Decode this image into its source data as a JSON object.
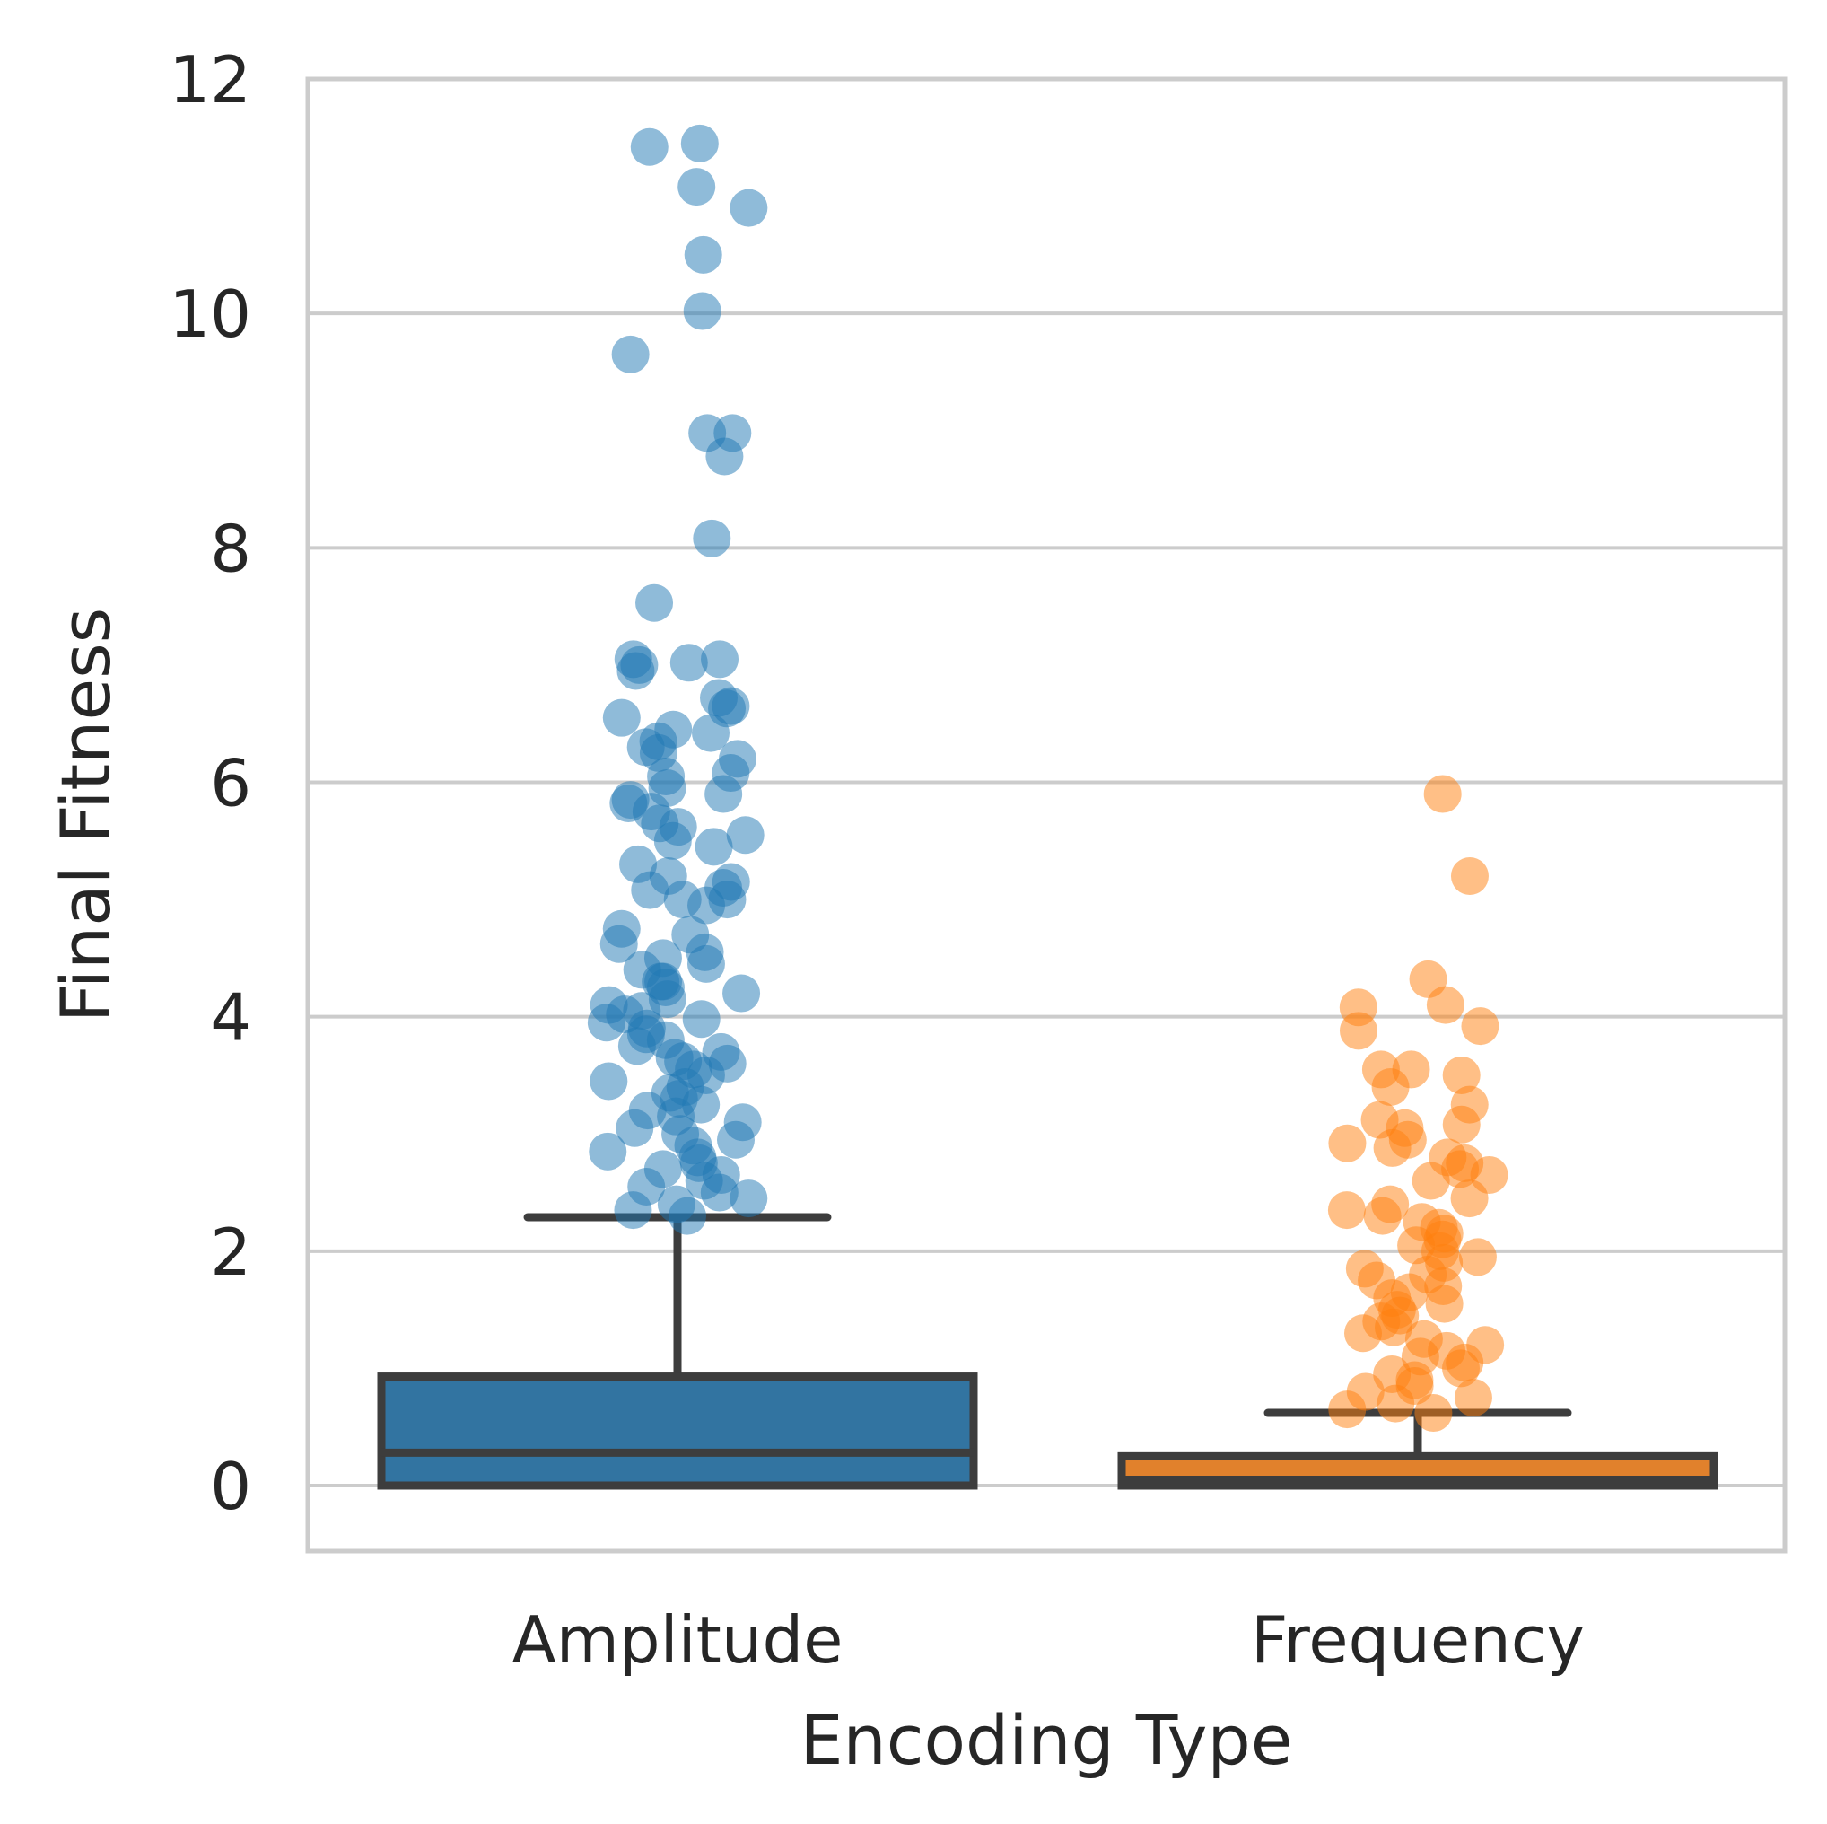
{
  "chart_data": {
    "type": "box",
    "title": "",
    "xlabel": "Encoding Type",
    "ylabel": "Final Fitness",
    "ylim": [
      -0.57,
      12
    ],
    "yticks": [
      0,
      2,
      4,
      6,
      8,
      10,
      12
    ],
    "grid": "horizontal",
    "colors": {
      "Amplitude": "#1f77b4",
      "Frequency": "#ff7f0e",
      "box_line": "#3d3d3d",
      "grid": "#cccccc",
      "box_fill_Amplitude": "#3274a1",
      "box_fill_Frequency": "#e1812c"
    },
    "categories": [
      "Amplitude",
      "Frequency"
    ],
    "boxes": [
      {
        "category": "Amplitude",
        "whislo": 0.0,
        "q1": 0.0,
        "median": 0.28,
        "q3": 0.93,
        "whishi": 2.29
      },
      {
        "category": "Frequency",
        "whislo": 0.0,
        "q1": 0.0,
        "median": 0.05,
        "q3": 0.25,
        "whishi": 0.62
      }
    ],
    "outliers": {
      "Amplitude": [
        11.45,
        11.42,
        11.08,
        10.9,
        10.5,
        10.02,
        9.65,
        8.98,
        8.98,
        8.78,
        8.08,
        7.53,
        7.05,
        7.05,
        7.02,
        7.0,
        6.95,
        6.72,
        6.65,
        6.63,
        6.55,
        6.45,
        6.42,
        6.35,
        6.3,
        6.25,
        6.2,
        6.08,
        6.05,
        5.95,
        5.9,
        5.85,
        5.82,
        5.75,
        5.65,
        5.62,
        5.55,
        5.5,
        5.45,
        5.3,
        5.2,
        5.15,
        5.1,
        5.08,
        5.0,
        5.0,
        4.95,
        4.75,
        4.7,
        4.62,
        4.55,
        4.5,
        4.45,
        4.4,
        4.3,
        4.3,
        4.25,
        4.2,
        4.15,
        4.1,
        4.05,
        4.02,
        3.98,
        3.95,
        3.9,
        3.85,
        3.8,
        3.75,
        3.7,
        3.65,
        3.62,
        3.6,
        3.55,
        3.5,
        3.45,
        3.4,
        3.35,
        3.3,
        3.25,
        3.2,
        3.15,
        3.1,
        3.05,
        3.0,
        2.95,
        2.9,
        2.85,
        2.8,
        2.75,
        2.7,
        2.65,
        2.6,
        2.55,
        2.5,
        2.45,
        2.4,
        2.35,
        2.3
      ],
      "Frequency": [
        5.9,
        5.2,
        4.32,
        4.1,
        4.08,
        3.92,
        3.88,
        3.55,
        3.55,
        3.5,
        3.4,
        3.25,
        3.12,
        3.08,
        3.05,
        2.95,
        2.92,
        2.88,
        2.8,
        2.75,
        2.7,
        2.65,
        2.6,
        2.45,
        2.4,
        2.35,
        2.3,
        2.25,
        2.2,
        2.15,
        2.1,
        2.05,
        2.0,
        1.95,
        1.9,
        1.85,
        1.8,
        1.75,
        1.7,
        1.65,
        1.6,
        1.55,
        1.5,
        1.45,
        1.4,
        1.35,
        1.3,
        1.25,
        1.2,
        1.15,
        1.1,
        1.05,
        1.0,
        0.95,
        0.9,
        0.85,
        0.8,
        0.75,
        0.7,
        0.65,
        0.62
      ]
    }
  }
}
